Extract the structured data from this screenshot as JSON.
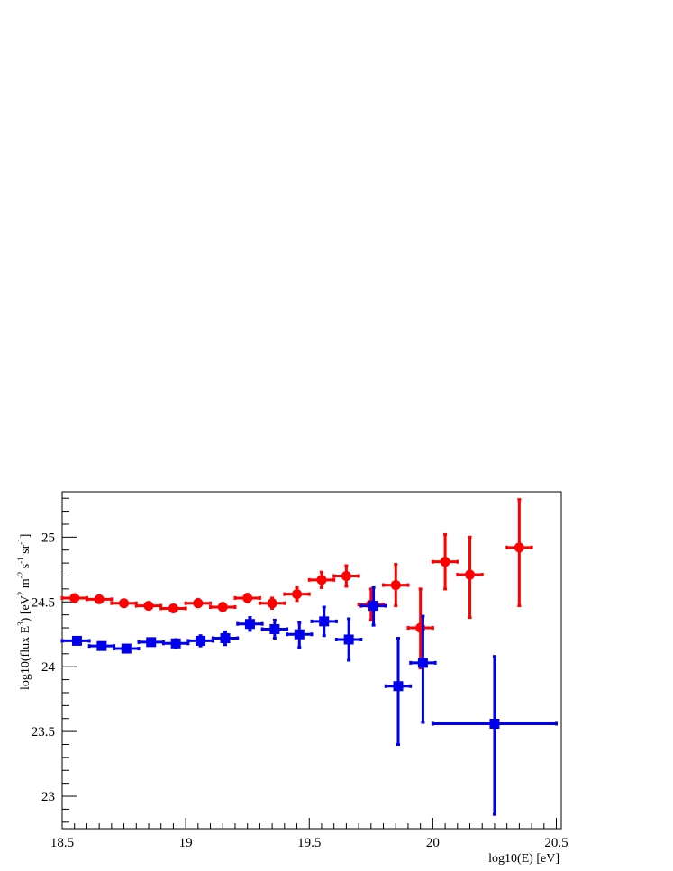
{
  "chart_data": {
    "type": "scatter",
    "xlabel": "log10(E) [eV]",
    "ylabel": {
      "text": "log10(flux E",
      "exp1": "3",
      "mid1": ") [eV",
      "exp2": "2",
      "mid2": " m",
      "exp3": "-2",
      "mid3": " s",
      "exp4": "-1",
      "mid4": " sr",
      "exp5": "-1",
      "end": "]"
    },
    "xlim": [
      18.5,
      20.52
    ],
    "ylim": [
      22.75,
      25.35
    ],
    "x_ticks": [
      18.5,
      19,
      19.5,
      20,
      20.5
    ],
    "x_tick_labels": [
      "18.5",
      "19",
      "19.5",
      "20",
      "20.5"
    ],
    "y_ticks": [
      23,
      23.5,
      24,
      24.5,
      25
    ],
    "y_tick_labels": [
      "23",
      "23.5",
      "24",
      "24.5",
      "25"
    ],
    "grid": false,
    "series": [
      {
        "color": "#ff0000",
        "marker": "circle",
        "points": [
          {
            "x": 18.55,
            "xlo": 18.5,
            "xhi": 18.6,
            "y": 24.53,
            "ylo": 24.51,
            "yhi": 24.55
          },
          {
            "x": 18.65,
            "xlo": 18.6,
            "xhi": 18.7,
            "y": 24.52,
            "ylo": 24.5,
            "yhi": 24.54
          },
          {
            "x": 18.75,
            "xlo": 18.7,
            "xhi": 18.8,
            "y": 24.49,
            "ylo": 24.47,
            "yhi": 24.51
          },
          {
            "x": 18.85,
            "xlo": 18.8,
            "xhi": 18.9,
            "y": 24.47,
            "ylo": 24.45,
            "yhi": 24.49
          },
          {
            "x": 18.95,
            "xlo": 18.9,
            "xhi": 19.0,
            "y": 24.45,
            "ylo": 24.43,
            "yhi": 24.47
          },
          {
            "x": 19.05,
            "xlo": 19.0,
            "xhi": 19.1,
            "y": 24.49,
            "ylo": 24.47,
            "yhi": 24.52
          },
          {
            "x": 19.15,
            "xlo": 19.1,
            "xhi": 19.2,
            "y": 24.46,
            "ylo": 24.43,
            "yhi": 24.49
          },
          {
            "x": 19.25,
            "xlo": 19.2,
            "xhi": 19.3,
            "y": 24.53,
            "ylo": 24.5,
            "yhi": 24.56
          },
          {
            "x": 19.35,
            "xlo": 19.3,
            "xhi": 19.4,
            "y": 24.49,
            "ylo": 24.45,
            "yhi": 24.53
          },
          {
            "x": 19.45,
            "xlo": 19.4,
            "xhi": 19.5,
            "y": 24.56,
            "ylo": 24.51,
            "yhi": 24.61
          },
          {
            "x": 19.55,
            "xlo": 19.5,
            "xhi": 19.6,
            "y": 24.67,
            "ylo": 24.61,
            "yhi": 24.73
          },
          {
            "x": 19.65,
            "xlo": 19.6,
            "xhi": 19.7,
            "y": 24.7,
            "ylo": 24.62,
            "yhi": 24.78
          },
          {
            "x": 19.75,
            "xlo": 19.7,
            "xhi": 19.8,
            "y": 24.48,
            "ylo": 24.36,
            "yhi": 24.6
          },
          {
            "x": 19.85,
            "xlo": 19.8,
            "xhi": 19.9,
            "y": 24.63,
            "ylo": 24.47,
            "yhi": 24.79
          },
          {
            "x": 19.95,
            "xlo": 19.9,
            "xhi": 20.0,
            "y": 24.3,
            "ylo": 23.99,
            "yhi": 24.6
          },
          {
            "x": 20.05,
            "xlo": 20.0,
            "xhi": 20.1,
            "y": 24.81,
            "ylo": 24.6,
            "yhi": 25.02
          },
          {
            "x": 20.15,
            "xlo": 20.1,
            "xhi": 20.2,
            "y": 24.71,
            "ylo": 24.38,
            "yhi": 25.0
          },
          {
            "x": 20.35,
            "xlo": 20.3,
            "xhi": 20.4,
            "y": 24.92,
            "ylo": 24.47,
            "yhi": 25.29
          }
        ]
      },
      {
        "color": "#0000ee",
        "marker": "square",
        "points": [
          {
            "x": 18.56,
            "xlo": 18.5,
            "xhi": 18.61,
            "y": 24.2,
            "ylo": 24.18,
            "yhi": 24.22
          },
          {
            "x": 18.66,
            "xlo": 18.61,
            "xhi": 18.71,
            "y": 24.16,
            "ylo": 24.14,
            "yhi": 24.18
          },
          {
            "x": 18.76,
            "xlo": 18.71,
            "xhi": 18.81,
            "y": 24.14,
            "ylo": 24.12,
            "yhi": 24.16
          },
          {
            "x": 18.86,
            "xlo": 18.81,
            "xhi": 18.91,
            "y": 24.19,
            "ylo": 24.17,
            "yhi": 24.21
          },
          {
            "x": 18.96,
            "xlo": 18.91,
            "xhi": 19.01,
            "y": 24.18,
            "ylo": 24.15,
            "yhi": 24.21
          },
          {
            "x": 19.06,
            "xlo": 19.01,
            "xhi": 19.11,
            "y": 24.2,
            "ylo": 24.16,
            "yhi": 24.24
          },
          {
            "x": 19.16,
            "xlo": 19.11,
            "xhi": 19.21,
            "y": 24.22,
            "ylo": 24.17,
            "yhi": 24.27
          },
          {
            "x": 19.26,
            "xlo": 19.21,
            "xhi": 19.31,
            "y": 24.33,
            "ylo": 24.28,
            "yhi": 24.38
          },
          {
            "x": 19.36,
            "xlo": 19.31,
            "xhi": 19.41,
            "y": 24.29,
            "ylo": 24.22,
            "yhi": 24.36
          },
          {
            "x": 19.46,
            "xlo": 19.41,
            "xhi": 19.51,
            "y": 24.25,
            "ylo": 24.15,
            "yhi": 24.34
          },
          {
            "x": 19.56,
            "xlo": 19.51,
            "xhi": 19.61,
            "y": 24.35,
            "ylo": 24.24,
            "yhi": 24.46
          },
          {
            "x": 19.66,
            "xlo": 19.61,
            "xhi": 19.71,
            "y": 24.21,
            "ylo": 24.05,
            "yhi": 24.37
          },
          {
            "x": 19.76,
            "xlo": 19.71,
            "xhi": 19.81,
            "y": 24.47,
            "ylo": 24.32,
            "yhi": 24.61
          },
          {
            "x": 19.86,
            "xlo": 19.81,
            "xhi": 19.91,
            "y": 23.85,
            "ylo": 23.4,
            "yhi": 24.22
          },
          {
            "x": 19.96,
            "xlo": 19.91,
            "xhi": 20.01,
            "y": 24.03,
            "ylo": 23.57,
            "yhi": 24.39
          },
          {
            "x": 20.25,
            "xlo": 20.0,
            "xhi": 20.5,
            "y": 23.56,
            "ylo": 22.86,
            "yhi": 24.08
          }
        ]
      }
    ]
  }
}
